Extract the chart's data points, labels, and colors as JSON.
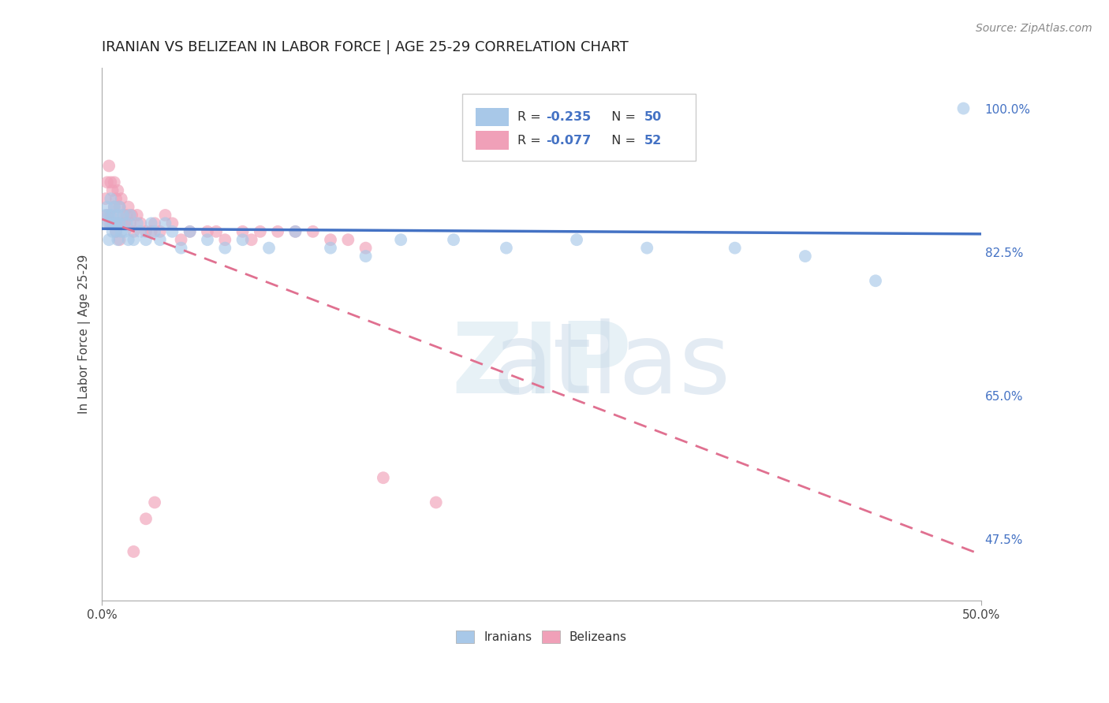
{
  "title": "IRANIAN VS BELIZEAN IN LABOR FORCE | AGE 25-29 CORRELATION CHART",
  "source_text": "Source: ZipAtlas.com",
  "ylabel": "In Labor Force | Age 25-29",
  "xlim": [
    0.0,
    0.5
  ],
  "ylim": [
    0.4,
    1.05
  ],
  "yticks": [
    0.475,
    0.65,
    0.825,
    1.0
  ],
  "ytick_labels": [
    "47.5%",
    "65.0%",
    "82.5%",
    "100.0%"
  ],
  "xticks": [
    0.0,
    0.5
  ],
  "xtick_labels": [
    "0.0%",
    "50.0%"
  ],
  "background_color": "#ffffff",
  "grid_color": "#c8c8c8",
  "iranian_color": "#a8c8e8",
  "belizean_color": "#f0a0b8",
  "iranian_line_color": "#4472c4",
  "belizean_line_color": "#e07090",
  "iranians_x": [
    0.002,
    0.003,
    0.003,
    0.004,
    0.004,
    0.005,
    0.005,
    0.006,
    0.006,
    0.007,
    0.007,
    0.008,
    0.008,
    0.009,
    0.009,
    0.01,
    0.01,
    0.011,
    0.012,
    0.013,
    0.014,
    0.015,
    0.016,
    0.018,
    0.02,
    0.022,
    0.025,
    0.028,
    0.03,
    0.033,
    0.036,
    0.04,
    0.045,
    0.05,
    0.06,
    0.07,
    0.08,
    0.095,
    0.11,
    0.13,
    0.15,
    0.17,
    0.2,
    0.23,
    0.27,
    0.31,
    0.36,
    0.4,
    0.44,
    0.49
  ],
  "iranians_y": [
    0.87,
    0.86,
    0.88,
    0.84,
    0.87,
    0.86,
    0.89,
    0.85,
    0.87,
    0.86,
    0.88,
    0.85,
    0.86,
    0.87,
    0.84,
    0.86,
    0.88,
    0.85,
    0.87,
    0.85,
    0.86,
    0.84,
    0.87,
    0.84,
    0.86,
    0.85,
    0.84,
    0.86,
    0.85,
    0.84,
    0.86,
    0.85,
    0.83,
    0.85,
    0.84,
    0.83,
    0.84,
    0.83,
    0.85,
    0.83,
    0.82,
    0.84,
    0.84,
    0.83,
    0.84,
    0.83,
    0.83,
    0.82,
    0.79,
    1.0
  ],
  "belizeans_x": [
    0.002,
    0.003,
    0.003,
    0.004,
    0.004,
    0.005,
    0.005,
    0.006,
    0.006,
    0.007,
    0.007,
    0.008,
    0.008,
    0.009,
    0.009,
    0.01,
    0.01,
    0.011,
    0.012,
    0.013,
    0.014,
    0.015,
    0.016,
    0.017,
    0.018,
    0.02,
    0.022,
    0.025,
    0.028,
    0.03,
    0.033,
    0.036,
    0.04,
    0.045,
    0.05,
    0.06,
    0.07,
    0.08,
    0.09,
    0.11,
    0.13,
    0.15,
    0.16,
    0.19,
    0.065,
    0.085,
    0.1,
    0.12,
    0.14,
    0.018,
    0.025,
    0.03
  ],
  "belizeans_y": [
    0.89,
    0.91,
    0.87,
    0.93,
    0.86,
    0.91,
    0.87,
    0.9,
    0.86,
    0.91,
    0.88,
    0.89,
    0.85,
    0.9,
    0.86,
    0.88,
    0.84,
    0.89,
    0.87,
    0.86,
    0.87,
    0.88,
    0.86,
    0.87,
    0.85,
    0.87,
    0.86,
    0.85,
    0.85,
    0.86,
    0.85,
    0.87,
    0.86,
    0.84,
    0.85,
    0.85,
    0.84,
    0.85,
    0.85,
    0.85,
    0.84,
    0.83,
    0.55,
    0.52,
    0.85,
    0.84,
    0.85,
    0.85,
    0.84,
    0.46,
    0.5,
    0.52
  ]
}
